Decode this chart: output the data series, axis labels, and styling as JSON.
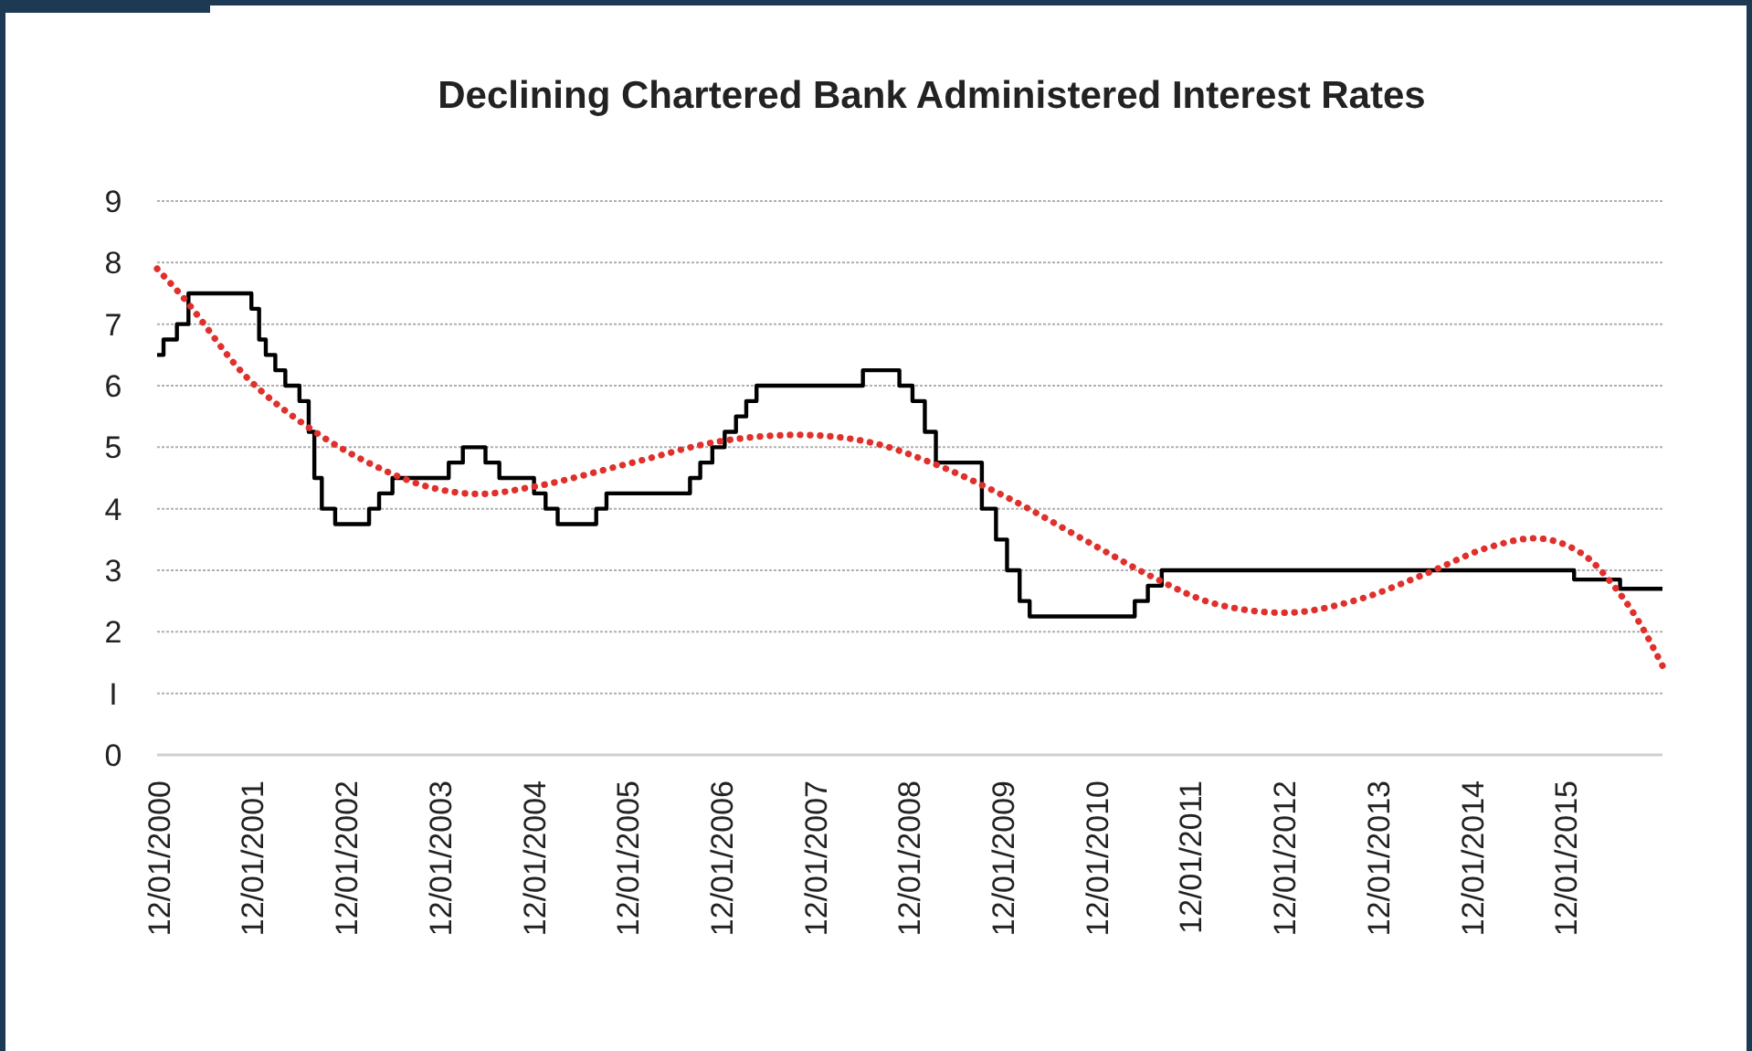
{
  "chart_data": {
    "type": "step",
    "title": "Declining Chartered Bank Administered Interest Rates",
    "xlim": [
      "2000-11-25",
      "2016-12-10"
    ],
    "xticks": [
      {
        "value": "2000-12-01",
        "label": "12/01/2000"
      },
      {
        "value": "2001-12-01",
        "label": "12/01/2001"
      },
      {
        "value": "2002-12-01",
        "label": "12/01/2002"
      },
      {
        "value": "2003-12-01",
        "label": "12/01/2003"
      },
      {
        "value": "2004-12-01",
        "label": "12/01/2004"
      },
      {
        "value": "2005-12-01",
        "label": "12/01/2005"
      },
      {
        "value": "2006-12-01",
        "label": "12/01/2006"
      },
      {
        "value": "2007-12-01",
        "label": "12/01/2007"
      },
      {
        "value": "2008-12-01",
        "label": "12/01/2008"
      },
      {
        "value": "2009-12-01",
        "label": "12/01/2009"
      },
      {
        "value": "2010-12-01",
        "label": "12/01/2010"
      },
      {
        "value": "2011-12-01",
        "label": "12/01/2011"
      },
      {
        "value": "2012-12-01",
        "label": "12/01/2012"
      },
      {
        "value": "2013-12-01",
        "label": "12/01/2013"
      },
      {
        "value": "2014-12-01",
        "label": "12/01/2014"
      },
      {
        "value": "2015-12-01",
        "label": "12/01/2015"
      }
    ],
    "ylim": [
      0,
      9
    ],
    "yticks": [
      0,
      {
        "value": 1,
        "label": "I"
      },
      2,
      3,
      4,
      5,
      6,
      7,
      8,
      9
    ],
    "grid": "y",
    "marker": "none",
    "series": [
      {
        "type": "step",
        "color": "#000000",
        "line_style": "solid",
        "x": [
          "2000-11-25",
          "2000-12-20",
          "2001-02-10",
          "2001-03-27",
          "2001-11-27",
          "2001-12-27",
          "2002-01-22",
          "2002-02-28",
          "2002-04-08",
          "2002-06-02",
          "2002-07-08",
          "2002-07-30",
          "2002-08-28",
          "2002-10-19",
          "2003-02-28",
          "2003-04-08",
          "2003-05-30",
          "2004-01-04",
          "2004-02-28",
          "2004-05-26",
          "2004-07-19",
          "2004-12-01",
          "2005-01-15",
          "2005-03-03",
          "2005-07-31",
          "2005-09-09",
          "2006-07-31",
          "2006-09-09",
          "2006-10-26",
          "2006-12-13",
          "2007-01-26",
          "2007-03-07",
          "2007-04-16",
          "2008-06-03",
          "2008-10-23",
          "2008-12-13",
          "2009-01-30",
          "2009-03-14",
          "2009-09-09",
          "2009-11-03",
          "2009-12-16",
          "2010-02-03",
          "2010-03-14",
          "2011-04-27",
          "2011-06-17",
          "2011-08-10",
          "2016-01-01",
          "2016-06-28",
          "2016-12-10"
        ],
        "values": [
          6.5,
          6.75,
          7.0,
          7.5,
          7.25,
          6.75,
          6.5,
          6.25,
          6.0,
          5.75,
          5.25,
          4.5,
          4.0,
          3.75,
          4.0,
          4.25,
          4.5,
          4.75,
          5.0,
          4.75,
          4.5,
          4.25,
          4.0,
          3.75,
          4.0,
          4.25,
          4.5,
          4.75,
          5.0,
          5.25,
          5.5,
          5.75,
          6.0,
          6.25,
          6.0,
          5.75,
          5.25,
          4.75,
          4.0,
          3.5,
          3.0,
          2.5,
          2.25,
          2.5,
          2.75,
          3.0,
          2.85,
          2.7,
          2.7
        ]
      },
      {
        "type": "line",
        "color": "#e0302c",
        "line_style": "dotted",
        "x": [
          "2000-11-25",
          "2001-03-01",
          "2001-11-01",
          "2002-07-01",
          "2003-03-01",
          "2003-11-01",
          "2004-05-01",
          "2004-12-01",
          "2005-12-01",
          "2006-12-01",
          "2007-10-01",
          "2008-07-01",
          "2009-03-01",
          "2010-01-01",
          "2010-11-01",
          "2011-07-01",
          "2012-03-01",
          "2012-12-01",
          "2013-09-01",
          "2014-06-01",
          "2015-02-01",
          "2015-08-01",
          "2016-02-01",
          "2016-06-01",
          "2016-09-01",
          "2016-12-10"
        ],
        "values": [
          7.9,
          7.46,
          6.17,
          5.34,
          4.74,
          4.34,
          4.24,
          4.36,
          4.73,
          5.1,
          5.2,
          5.08,
          4.74,
          4.15,
          3.45,
          2.9,
          2.46,
          2.31,
          2.51,
          2.94,
          3.37,
          3.52,
          3.27,
          2.76,
          2.22,
          1.45
        ]
      }
    ]
  }
}
